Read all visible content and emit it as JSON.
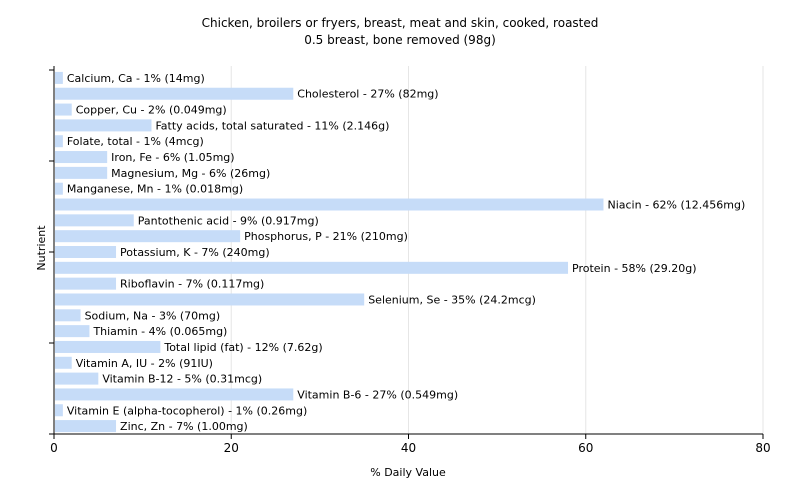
{
  "chart_data": {
    "type": "bar",
    "orientation": "horizontal",
    "title": "Chicken, broilers or fryers, breast, meat and skin, cooked, roasted",
    "subtitle": "0.5 breast, bone removed (98g)",
    "xlabel": "% Daily Value",
    "ylabel": "Nutrient",
    "xlim": [
      0,
      80
    ],
    "xticks": [
      0,
      20,
      40,
      60,
      80
    ],
    "grid": true,
    "bar_color": "#c6dcf8",
    "categories": [
      "Calcium, Ca",
      "Cholesterol",
      "Copper, Cu",
      "Fatty acids, total saturated",
      "Folate, total",
      "Iron, Fe",
      "Magnesium, Mg",
      "Manganese, Mn",
      "Niacin",
      "Pantothenic acid",
      "Phosphorus, P",
      "Potassium, K",
      "Protein",
      "Riboflavin",
      "Selenium, Se",
      "Sodium, Na",
      "Thiamin",
      "Total lipid (fat)",
      "Vitamin A, IU",
      "Vitamin B-12",
      "Vitamin B-6",
      "Vitamin E (alpha-tocopherol)",
      "Zinc, Zn"
    ],
    "values": [
      1,
      27,
      2,
      11,
      1,
      6,
      6,
      1,
      62,
      9,
      21,
      7,
      58,
      7,
      35,
      3,
      4,
      12,
      2,
      5,
      27,
      1,
      7
    ],
    "labels": [
      "Calcium, Ca - 1% (14mg)",
      "Cholesterol - 27% (82mg)",
      "Copper, Cu - 2% (0.049mg)",
      "Fatty acids, total saturated - 11% (2.146g)",
      "Folate, total - 1% (4mcg)",
      "Iron, Fe - 6% (1.05mg)",
      "Magnesium, Mg - 6% (26mg)",
      "Manganese, Mn - 1% (0.018mg)",
      "Niacin - 62% (12.456mg)",
      "Pantothenic acid - 9% (0.917mg)",
      "Phosphorus, P - 21% (210mg)",
      "Potassium, K - 7% (240mg)",
      "Protein - 58% (29.20g)",
      "Riboflavin - 7% (0.117mg)",
      "Selenium, Se - 35% (24.2mcg)",
      "Sodium, Na - 3% (70mg)",
      "Thiamin - 4% (0.065mg)",
      "Total lipid (fat) - 12% (7.62g)",
      "Vitamin A, IU - 2% (91IU)",
      "Vitamin B-12 - 5% (0.31mcg)",
      "Vitamin B-6 - 27% (0.549mg)",
      "Vitamin E (alpha-tocopherol) - 1% (0.26mg)",
      "Zinc, Zn - 7% (1.00mg)"
    ]
  }
}
